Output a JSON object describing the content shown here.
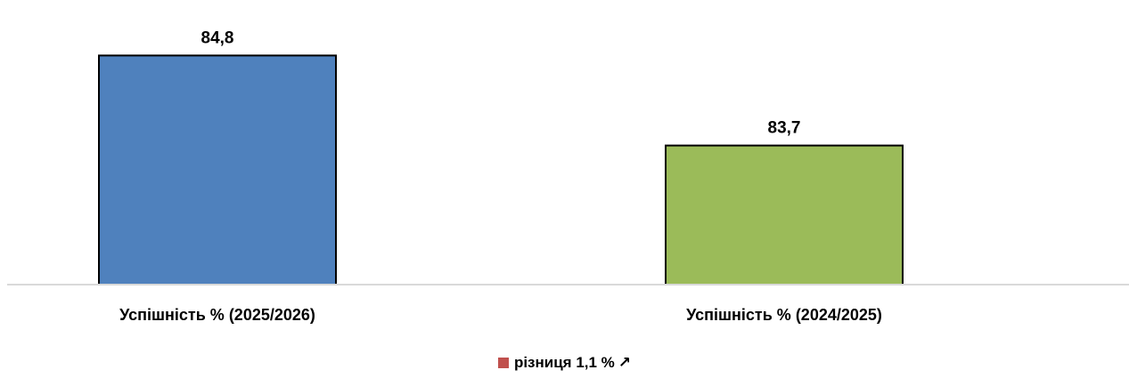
{
  "chart_data": {
    "type": "bar",
    "title": "",
    "xlabel": "",
    "ylabel": "",
    "categories": [
      "Успішність %  (2025/2026)",
      "Успішність %  (2024/2025)"
    ],
    "values": [
      84.8,
      83.7
    ],
    "data_labels": [
      "84,8",
      "83,7"
    ],
    "bar_colors": [
      "#4f81bd",
      "#9bbb59"
    ],
    "ylim": [
      82,
      85
    ],
    "grid": false,
    "legend": {
      "placement": "bottom",
      "entries": [
        {
          "label": "різниця 1,1 %",
          "symbol": "↗",
          "color": "#c0504d"
        }
      ]
    }
  }
}
